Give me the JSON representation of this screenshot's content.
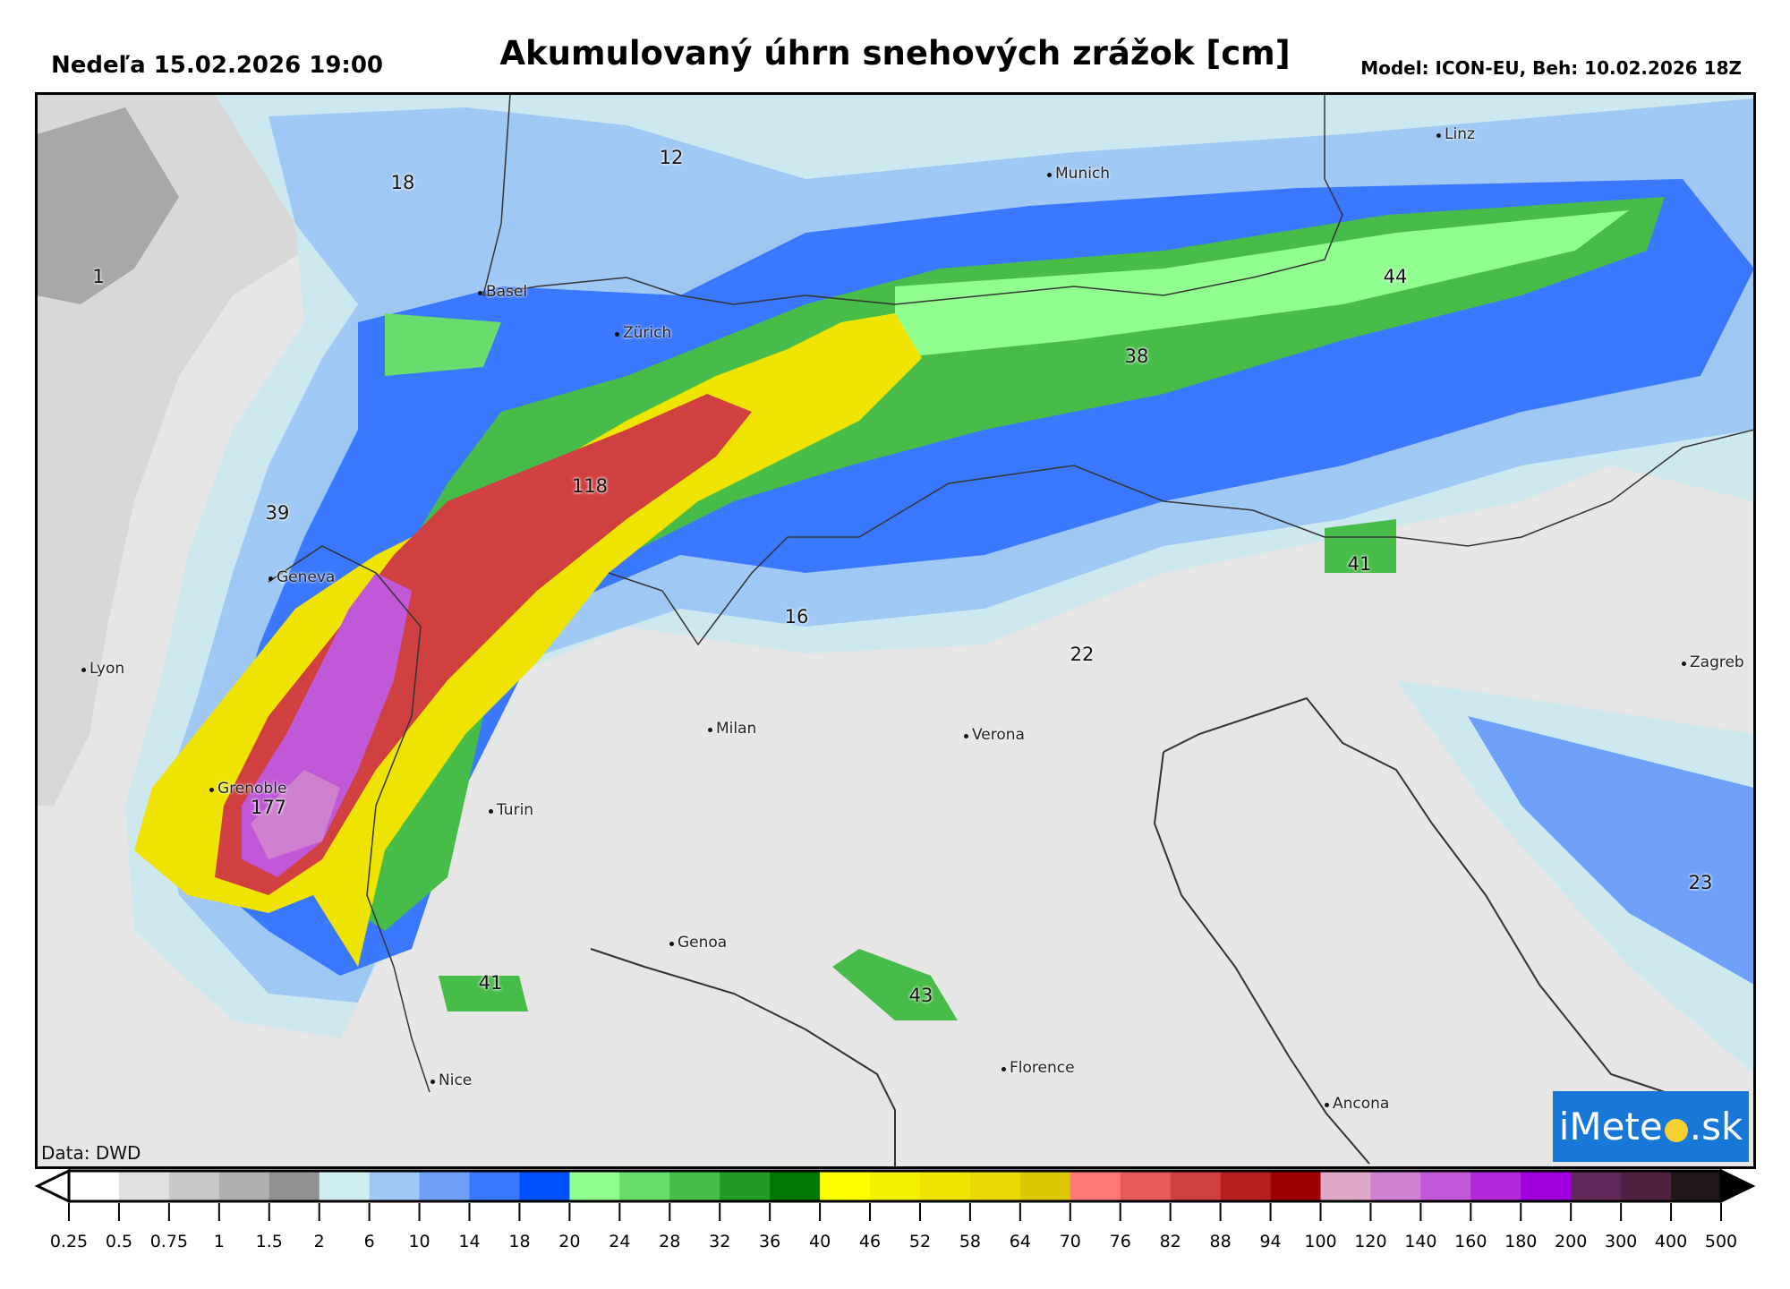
{
  "header": {
    "datetime": "Nedeľa 15.02.2026 19:00",
    "title": "Akumulovaný úhrn snehových zrážok [cm]",
    "model": "Model: ICON-EU, Beh: 10.02.2026 18Z"
  },
  "map": {
    "values": [
      {
        "text": "18"
      },
      {
        "text": "12"
      },
      {
        "text": "1"
      },
      {
        "text": "39"
      },
      {
        "text": "118"
      },
      {
        "text": "38"
      },
      {
        "text": "44"
      },
      {
        "text": "41"
      },
      {
        "text": "16"
      },
      {
        "text": "22"
      },
      {
        "text": "177"
      },
      {
        "text": "41"
      },
      {
        "text": "43"
      },
      {
        "text": "23"
      }
    ],
    "cities": [
      "Linz",
      "Munich",
      "Basel",
      "Zürich",
      "Geneva",
      "Lyon",
      "Zagreb",
      "Milan",
      "Verona",
      "Turin",
      "Grenoble",
      "Genoa",
      "Florence",
      "Nice",
      "Ancona"
    ],
    "credit": "Data: DWD",
    "logo": {
      "before": "iMete",
      "after": ".sk"
    }
  },
  "legend": {
    "ticks": [
      "0.25",
      "0.5",
      "0.75",
      "1",
      "1.5",
      "2",
      "6",
      "10",
      "14",
      "18",
      "20",
      "24",
      "28",
      "32",
      "36",
      "40",
      "46",
      "52",
      "58",
      "64",
      "70",
      "76",
      "82",
      "88",
      "94",
      "100",
      "120",
      "140",
      "160",
      "180",
      "200",
      "300",
      "400",
      "500"
    ],
    "colors": [
      "#ffffff",
      "#e0e0e0",
      "#c8c8c8",
      "#b0b0b0",
      "#909090",
      "#d0eef2",
      "#a0c8f5",
      "#6ea0fa",
      "#3a78ff",
      "#0050ff",
      "#90ff90",
      "#68dc6c",
      "#48bc48",
      "#249a24",
      "#007800",
      "#ffff00",
      "#f5ef00",
      "#eee400",
      "#e8d800",
      "#dcc800",
      "#ff7878",
      "#e85a5a",
      "#d04040",
      "#b82020",
      "#a00000",
      "#e0a8c8",
      "#d080d0",
      "#c058d8",
      "#b028d8",
      "#a000e0",
      "#602858",
      "#502040",
      "#201818"
    ],
    "under_color": "#ffffff",
    "over_color": "#000000"
  }
}
